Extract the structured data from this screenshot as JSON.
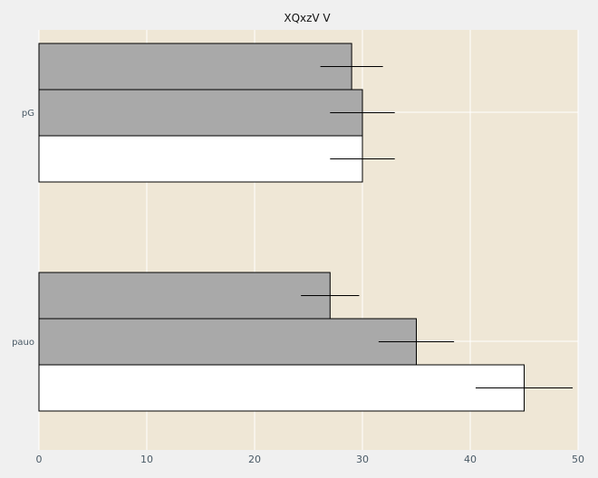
{
  "chart_data": {
    "type": "bar",
    "orientation": "horizontal",
    "title": "XQxzV V",
    "xlabel": "",
    "ylabel": "",
    "categories": [
      "pG",
      "pauo"
    ],
    "series": [
      {
        "color": "#a9a9a9",
        "values": [
          29,
          27
        ],
        "errors": [
          2.9,
          2.7
        ]
      },
      {
        "color": "#a9a9a9",
        "values": [
          30,
          35
        ],
        "errors": [
          3.0,
          3.5
        ]
      },
      {
        "color": "#ffffff",
        "values": [
          30,
          45
        ],
        "errors": [
          3.0,
          4.5
        ]
      }
    ],
    "xlim": [
      0,
      50
    ],
    "xticks": [
      0,
      10,
      20,
      30,
      40,
      50
    ],
    "grid": true,
    "legend": "none",
    "colors": {
      "background": "#f0f0f0",
      "plot_area": "#efe7d6",
      "grid": "#ffffff",
      "bar_edge": "#000000"
    }
  }
}
